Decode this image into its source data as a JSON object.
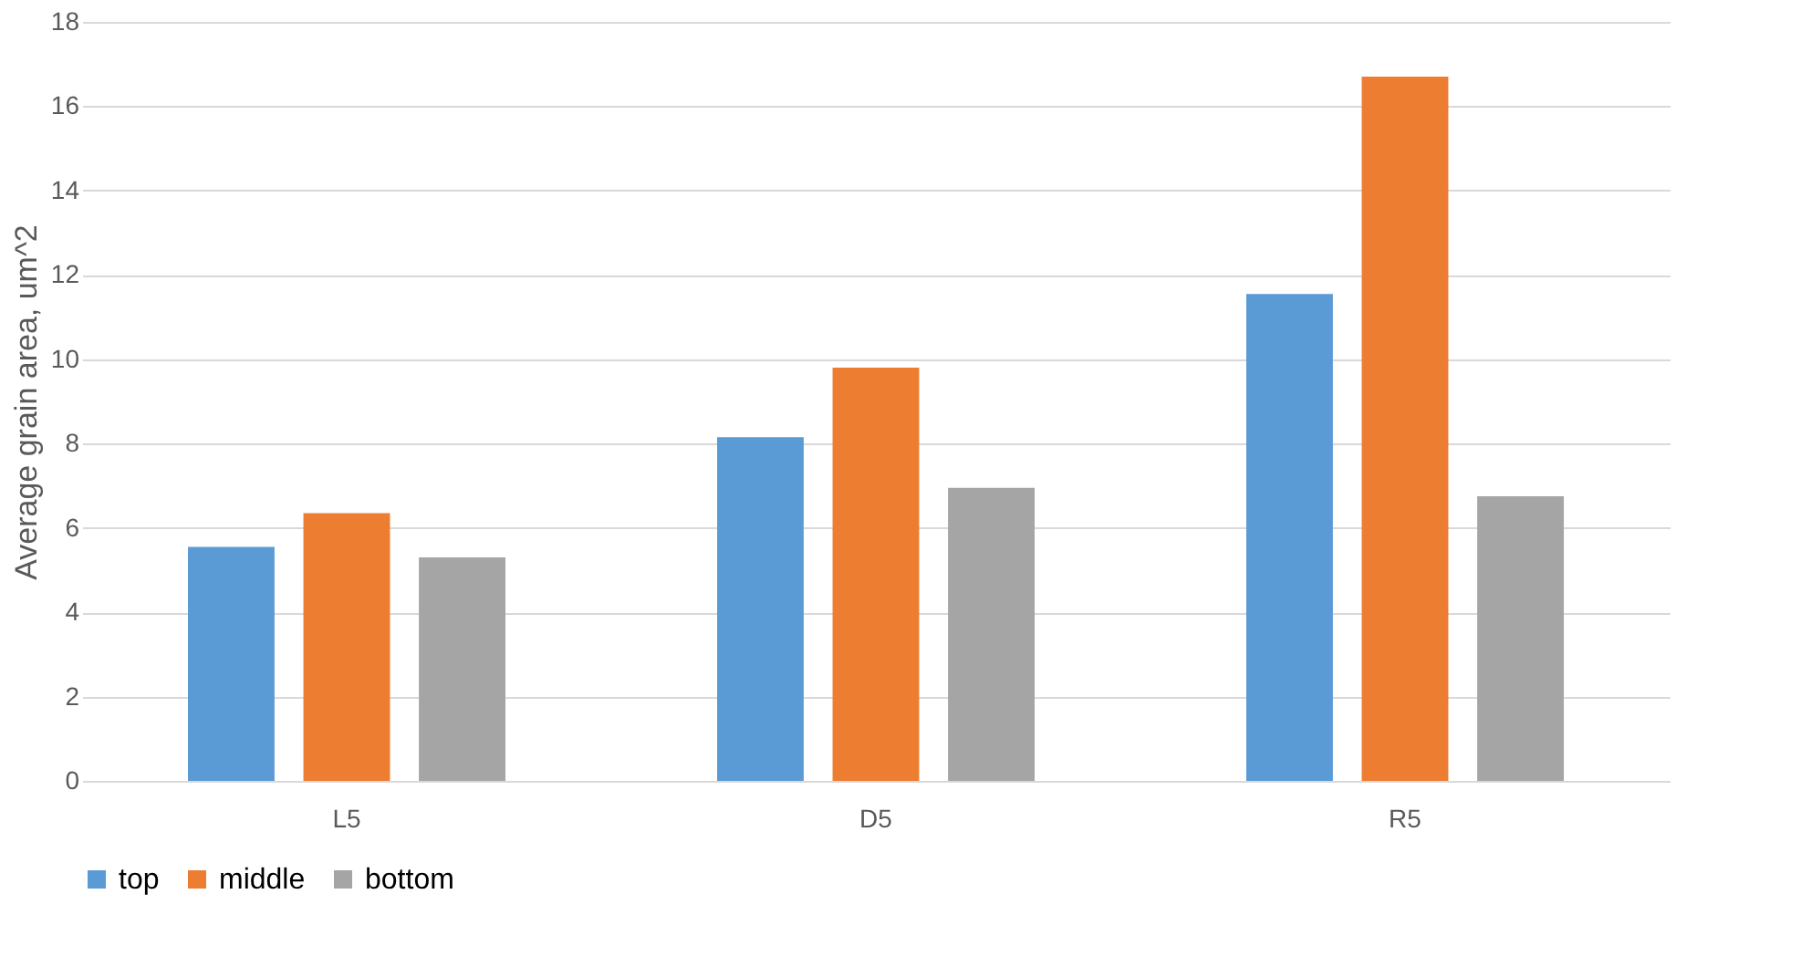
{
  "chart_data": {
    "type": "bar",
    "ylabel": "Average grain area, um^2",
    "categories": [
      "L5",
      "D5",
      "R5"
    ],
    "series": [
      {
        "name": "top",
        "color": "#5b9bd5",
        "values": [
          5.55,
          8.15,
          11.55
        ]
      },
      {
        "name": "middle",
        "color": "#ed7d31",
        "values": [
          6.35,
          9.8,
          16.7
        ]
      },
      {
        "name": "bottom",
        "color": "#a5a5a5",
        "values": [
          5.3,
          6.95,
          6.75
        ]
      }
    ],
    "ylim": [
      0,
      18
    ],
    "yticks": [
      0,
      2,
      4,
      6,
      8,
      10,
      12,
      14,
      16,
      18
    ],
    "grid": "y",
    "legend": "bottom"
  }
}
